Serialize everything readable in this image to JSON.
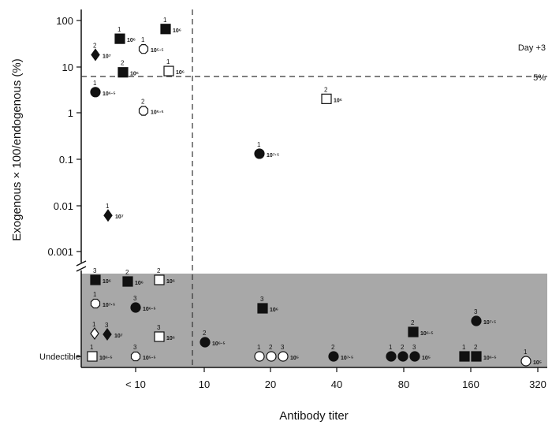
{
  "chart_data": {
    "type": "scatter",
    "xlabel": "Antibody titer",
    "ylabel": "Exogenous × 100/endogenous (%)",
    "x_categories": [
      "< 10",
      "10",
      "20",
      "40",
      "80",
      "160",
      "320"
    ],
    "y_scale": "log",
    "y_ticks": [
      "100",
      "10",
      "1",
      "0.1",
      "0.01",
      "0.001"
    ],
    "ylim": [
      0.0003,
      150
    ],
    "undetectable_label": "Undectible",
    "threshold": {
      "value": 5,
      "label": "5%"
    },
    "annotation": "Day +3",
    "legend_shapes": [
      "square",
      "diamond",
      "circle",
      "octagon"
    ],
    "points": [
      {
        "shape": "square",
        "fill": "black",
        "x": "< 10",
        "y": 40,
        "rep": "1",
        "dose": "10⁶"
      },
      {
        "shape": "square",
        "fill": "black",
        "x": "< 10",
        "y": 65,
        "rep": "1",
        "dose": "10⁶"
      },
      {
        "shape": "diamond",
        "fill": "black",
        "x": "< 10",
        "y": 18,
        "rep": "2",
        "dose": "10⁷"
      },
      {
        "shape": "octagon",
        "fill": "white",
        "x": "< 10",
        "y": 24,
        "rep": "1",
        "dose": "10⁵·⁵"
      },
      {
        "shape": "square",
        "fill": "black",
        "x": "< 10",
        "y": 7.5,
        "rep": "2",
        "dose": "10⁶"
      },
      {
        "shape": "square",
        "fill": "white",
        "x": "< 10",
        "y": 8,
        "rep": "1",
        "dose": "10⁶"
      },
      {
        "shape": "circle",
        "fill": "black",
        "x": "< 10",
        "y": 2.8,
        "rep": "1",
        "dose": "10⁶·⁵"
      },
      {
        "shape": "octagon",
        "fill": "white",
        "x": "< 10",
        "y": 1.1,
        "rep": "2",
        "dose": "10⁵·⁵"
      },
      {
        "shape": "diamond",
        "fill": "black",
        "x": "< 10",
        "y": 0.006,
        "rep": "1",
        "dose": "10⁷"
      },
      {
        "shape": "circle",
        "fill": "black",
        "x": "20",
        "y": 0.13,
        "rep": "1",
        "dose": "10⁷·⁵"
      },
      {
        "shape": "square",
        "fill": "white",
        "x": "40",
        "y": 2,
        "rep": "2",
        "dose": "10⁶"
      },
      {
        "shape": "square",
        "fill": "black",
        "x": "< 10",
        "y": "undetectable",
        "rep": "3",
        "dose": "10⁶"
      },
      {
        "shape": "square",
        "fill": "black",
        "x": "< 10",
        "y": "undetectable",
        "rep": "2",
        "dose": "10⁶"
      },
      {
        "shape": "square",
        "fill": "white",
        "x": "< 10",
        "y": "undetectable",
        "rep": "2",
        "dose": "10⁶"
      },
      {
        "shape": "octagon",
        "fill": "white",
        "x": "< 10",
        "y": "undetectable",
        "rep": "1",
        "dose": "10⁷·⁵"
      },
      {
        "shape": "circle",
        "fill": "black",
        "x": "< 10",
        "y": "undetectable",
        "rep": "3",
        "dose": "10⁶·⁵"
      },
      {
        "shape": "diamond",
        "fill": "white",
        "x": "< 10",
        "y": "undetectable",
        "rep": "1",
        "dose": ""
      },
      {
        "shape": "diamond",
        "fill": "black",
        "x": "< 10",
        "y": "undetectable",
        "rep": "3",
        "dose": "10⁷"
      },
      {
        "shape": "square",
        "fill": "white",
        "x": "< 10",
        "y": "undetectable",
        "rep": "3",
        "dose": "10⁶"
      },
      {
        "shape": "square",
        "fill": "white",
        "x": "< 10",
        "y": "undetectable",
        "rep": "1",
        "dose": "10⁶·⁵"
      },
      {
        "shape": "octagon",
        "fill": "white",
        "x": "< 10",
        "y": "undetectable",
        "rep": "3",
        "dose": "10⁵·⁵"
      },
      {
        "shape": "circle",
        "fill": "black",
        "x": "10",
        "y": "undetectable",
        "rep": "2",
        "dose": "10⁶·⁵"
      },
      {
        "shape": "square",
        "fill": "black",
        "x": "20",
        "y": "undetectable",
        "rep": "3",
        "dose": "10⁶"
      },
      {
        "shape": "circle",
        "fill": "white",
        "x": "20",
        "y": "undetectable",
        "rep": "1 2 3",
        "dose": "10⁵"
      },
      {
        "shape": "circle",
        "fill": "black",
        "x": "40",
        "y": "undetectable",
        "rep": "2",
        "dose": "10⁷·⁵"
      },
      {
        "shape": "square",
        "fill": "black",
        "x": "80",
        "y": "undetectable",
        "rep": "2",
        "dose": "10⁶·⁵"
      },
      {
        "shape": "circle",
        "fill": "black",
        "x": "80",
        "y": "undetectable",
        "rep": "1 2 3",
        "dose": "10⁵"
      },
      {
        "shape": "circle",
        "fill": "black",
        "x": "160",
        "y": "undetectable",
        "rep": "3",
        "dose": "10⁷·⁵"
      },
      {
        "shape": "square",
        "fill": "black",
        "x": "160",
        "y": "undetectable",
        "rep": "1 2",
        "dose": "10⁶·⁵"
      },
      {
        "shape": "circle",
        "fill": "white",
        "x": "320",
        "y": "undetectable",
        "rep": "1",
        "dose": "10⁵"
      }
    ]
  }
}
